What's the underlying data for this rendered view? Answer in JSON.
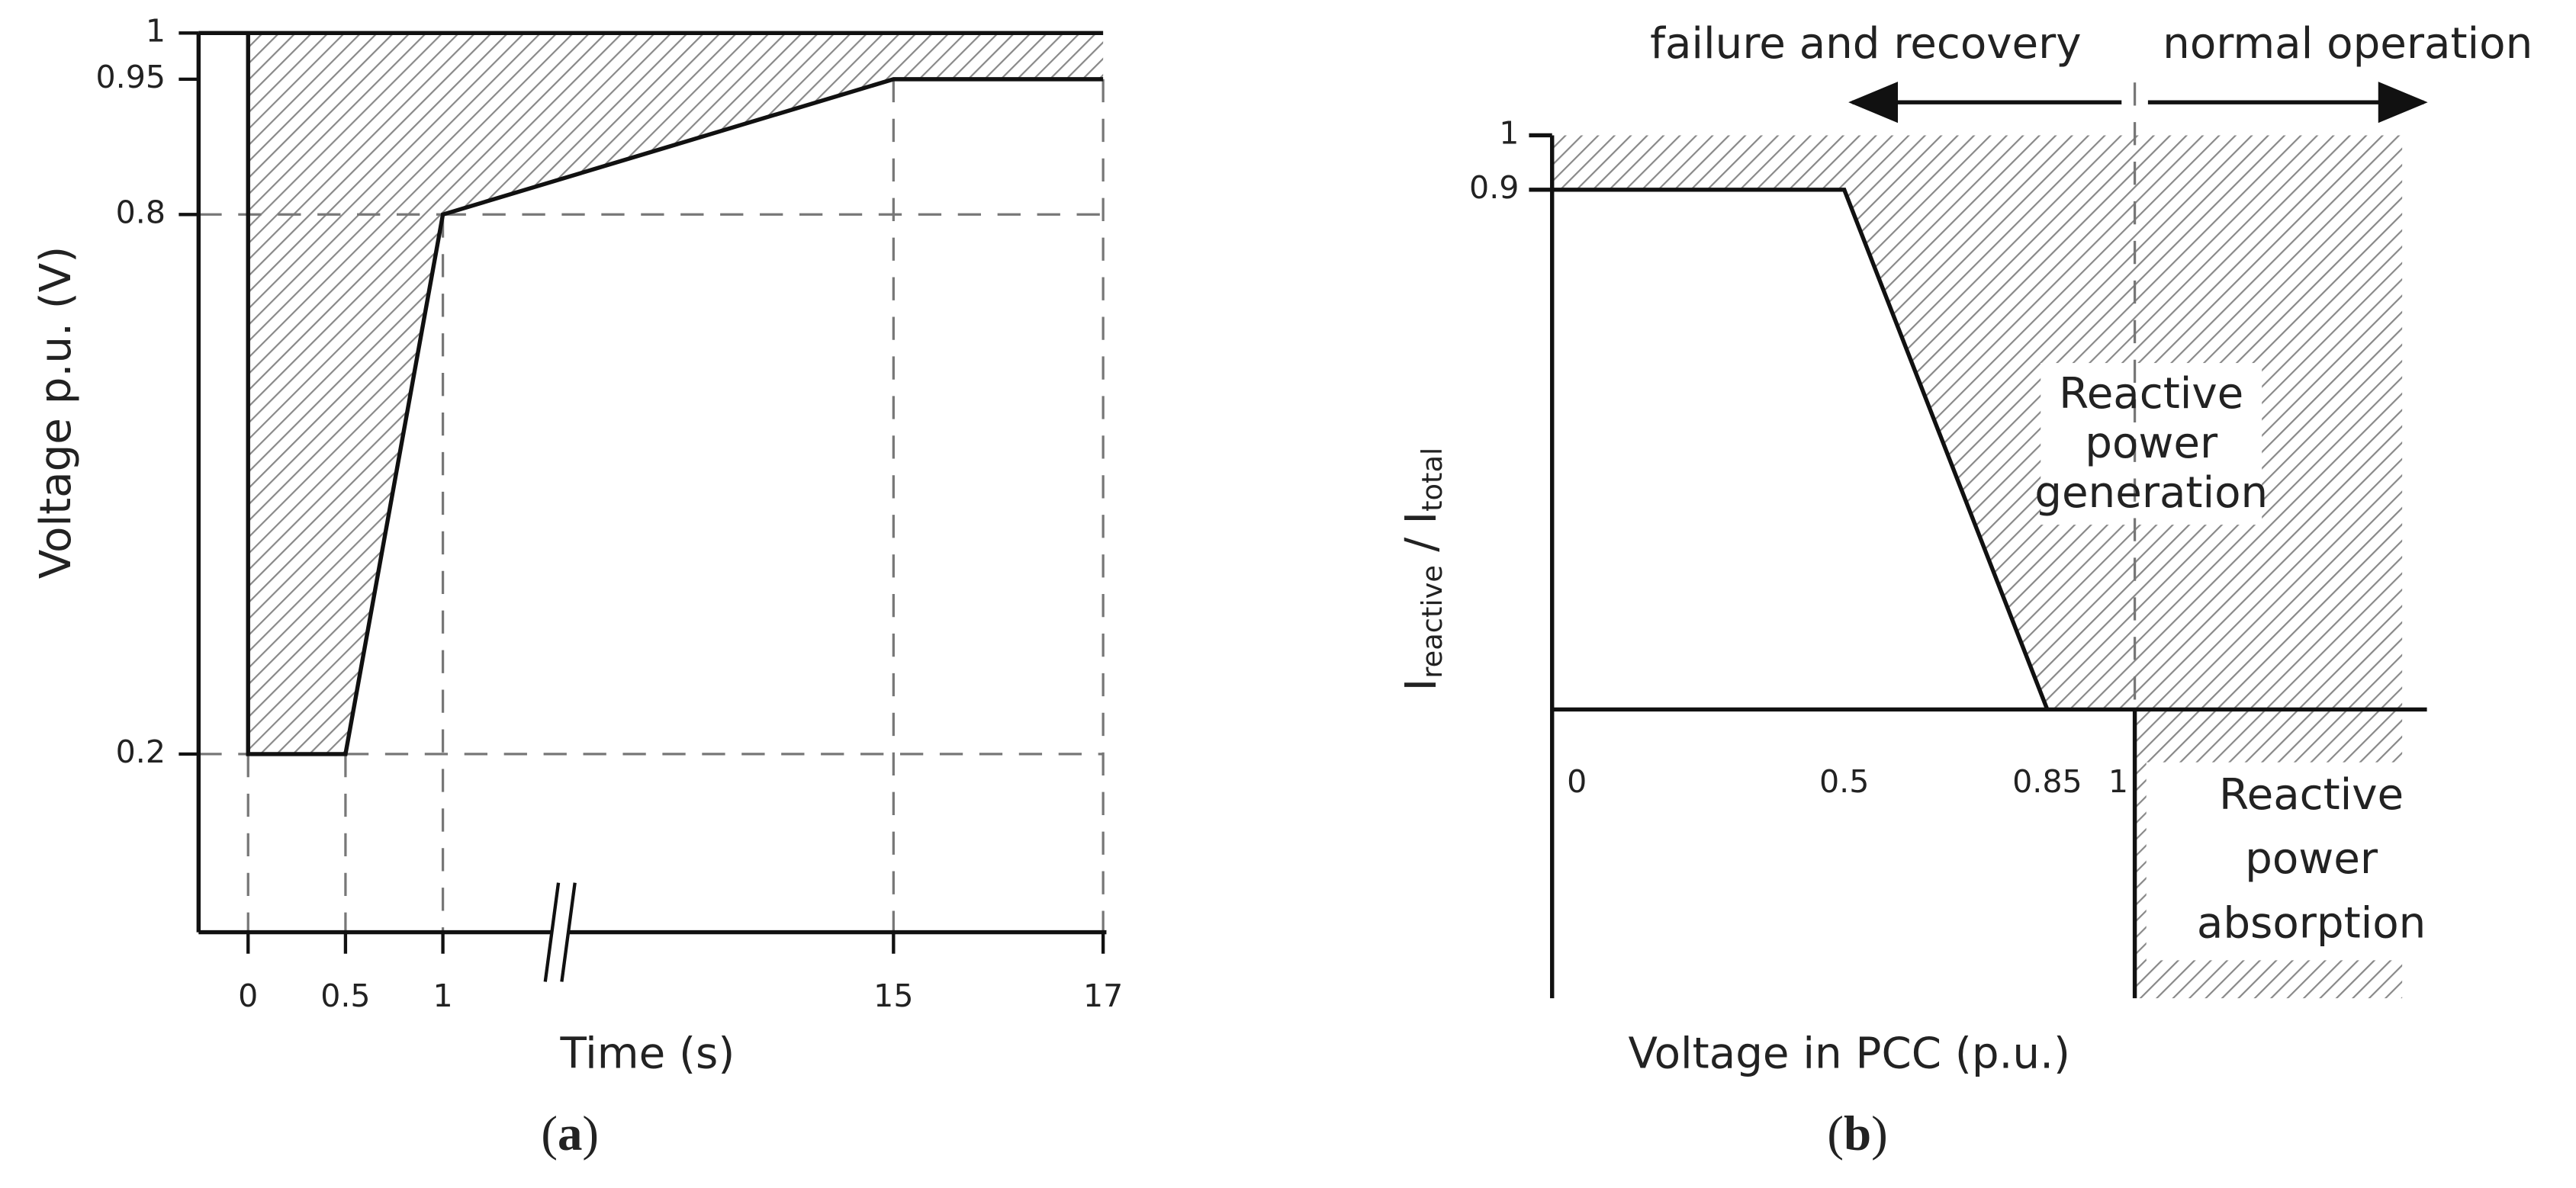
{
  "panels": [
    {
      "label": {
        "open": "(",
        "letter": "a",
        "close": ")"
      },
      "y_axis_label": "Voltage p.u. (V)",
      "x_axis_label": "Time (s)",
      "y_ticks": [
        "1",
        "0.95",
        "0.8",
        "0.2"
      ],
      "x_ticks": [
        "0",
        "0.5",
        "1",
        "15",
        "17"
      ]
    },
    {
      "label": {
        "open": "(",
        "letter": "b",
        "close": ")"
      },
      "y_axis_label": {
        "main1": "I",
        "sub1": "reactive",
        "sep": "/",
        "main2": "I",
        "sub2": "total"
      },
      "x_axis_label": "Voltage in PCC (p.u.)",
      "y_ticks": [
        "1",
        "0.9"
      ],
      "x_ticks": [
        "0",
        "0.5",
        "0.85",
        "1"
      ],
      "annotations": {
        "left_arrow": "failure and recovery",
        "right_arrow": "normal operation",
        "generation": [
          "Reactive",
          "power",
          "generation"
        ],
        "absorption": [
          "Reactive",
          "power",
          "absorption"
        ]
      }
    }
  ]
}
